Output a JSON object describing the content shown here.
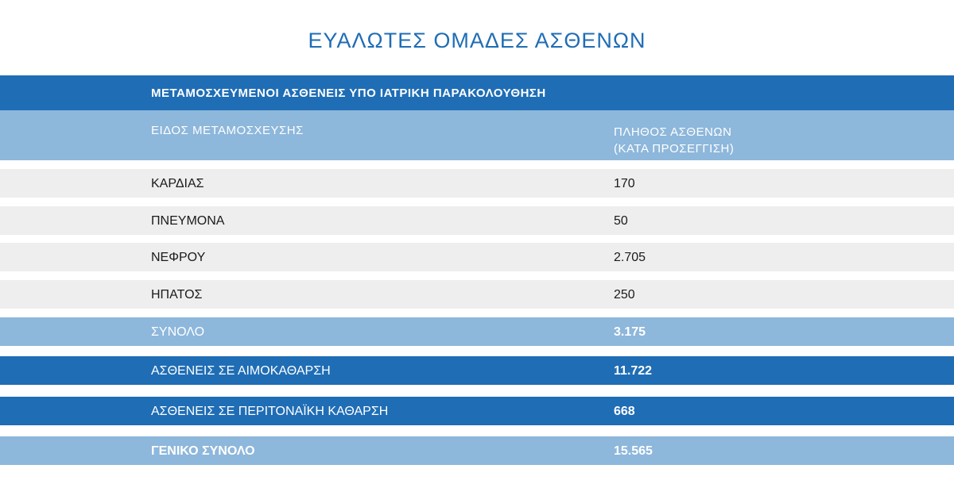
{
  "title": "ΕΥΑΛΩΤΕΣ ΟΜΑΔΕΣ ΑΣΘΕΝΩΝ",
  "table": {
    "section_title": "ΜΕΤΑΜΟΣΧΕΥΜΕΝΟΙ ΑΣΘΕΝΕΙΣ ΥΠΟ ΙΑΤΡΙΚΗ ΠΑΡΑΚΟΛΟΥΘΗΣΗ",
    "col1_header": "ΕΙΔΟΣ ΜΕΤΑΜΟΣΧΕΥΣΗΣ",
    "col2_header_line1": "ΠΛΗΘΟΣ ΑΣΘΕΝΩΝ",
    "col2_header_line2": "(ΚΑΤΑ ΠΡΟΣΕΓΓΙΣΗ)",
    "rows": [
      {
        "label": "ΚΑΡΔΙΑΣ",
        "value": "170"
      },
      {
        "label": "ΠΝΕΥΜΟΝΑ",
        "value": "50"
      },
      {
        "label": "ΝΕΦΡΟΥ",
        "value": "2.705"
      },
      {
        "label": "ΗΠΑΤΟΣ",
        "value": "250"
      }
    ],
    "subtotal": {
      "label": "ΣΥΝΟΛΟ",
      "value": "3.175"
    },
    "hemodialysis": {
      "label": "ΑΣΘΕΝΕΙΣ ΣΕ ΑΙΜΟΚΑΘΑΡΣΗ",
      "value": "11.722"
    },
    "peritoneal": {
      "label": "ΑΣΘΕΝΕΙΣ ΣΕ ΠΕΡΙΤΟΝΑΪΚΗ ΚΑΘΑΡΣΗ",
      "value": "668"
    },
    "grand_total": {
      "label": "ΓΕΝΙΚΟ ΣΥΝΟΛΟ",
      "value": "15.565"
    }
  },
  "colors": {
    "dark_blue": "#1f6db5",
    "light_blue": "#8db7db",
    "row_grey": "#eeeeee"
  }
}
